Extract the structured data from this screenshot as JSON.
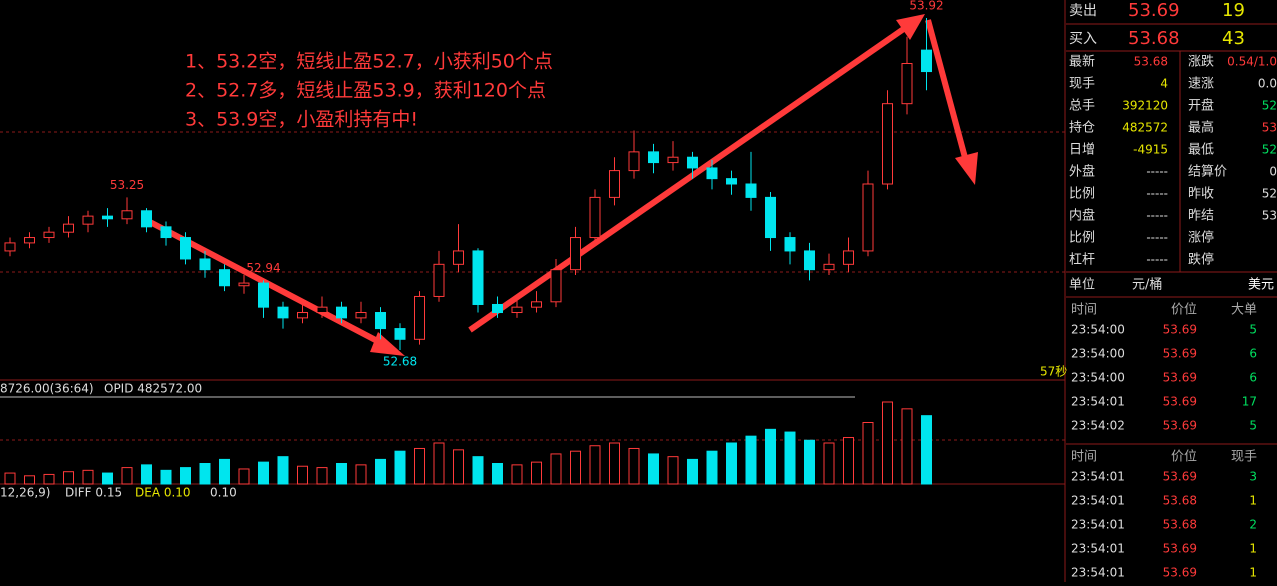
{
  "chart": {
    "annotations": [
      "1、53.2空，短线止盈52.7，小获利50个点",
      "2、52.7多，短线止盈53.9，获利120个点",
      "3、53.9空，小盈利持有中!"
    ],
    "candles": [
      [
        53.05,
        53.1,
        53.03,
        53.08
      ],
      [
        53.08,
        53.12,
        53.06,
        53.1
      ],
      [
        53.1,
        53.14,
        53.08,
        53.12
      ],
      [
        53.12,
        53.18,
        53.1,
        53.15
      ],
      [
        53.15,
        53.2,
        53.12,
        53.18
      ],
      [
        53.18,
        53.21,
        53.14,
        53.17
      ],
      [
        53.17,
        53.25,
        53.15,
        53.2
      ],
      [
        53.2,
        53.21,
        53.12,
        53.14
      ],
      [
        53.14,
        53.16,
        53.07,
        53.1
      ],
      [
        53.1,
        53.12,
        53.0,
        53.02
      ],
      [
        53.02,
        53.05,
        52.95,
        52.98
      ],
      [
        52.98,
        53.0,
        52.9,
        52.92
      ],
      [
        52.92,
        52.96,
        52.89,
        52.93
      ],
      [
        52.93,
        52.94,
        52.8,
        52.84
      ],
      [
        52.84,
        52.86,
        52.76,
        52.8
      ],
      [
        52.8,
        52.85,
        52.78,
        52.82
      ],
      [
        52.82,
        52.88,
        52.8,
        52.84
      ],
      [
        52.84,
        52.86,
        52.78,
        52.8
      ],
      [
        52.8,
        52.86,
        52.78,
        52.82
      ],
      [
        52.82,
        52.84,
        52.72,
        52.76
      ],
      [
        52.76,
        52.78,
        52.68,
        52.72
      ],
      [
        52.72,
        52.9,
        52.7,
        52.88
      ],
      [
        52.88,
        53.05,
        52.86,
        53.0
      ],
      [
        53.0,
        53.15,
        52.97,
        53.05
      ],
      [
        53.05,
        53.06,
        52.82,
        52.85
      ],
      [
        52.85,
        52.88,
        52.8,
        52.82
      ],
      [
        52.82,
        52.87,
        52.8,
        52.84
      ],
      [
        52.84,
        52.9,
        52.82,
        52.86
      ],
      [
        52.86,
        53.02,
        52.84,
        52.98
      ],
      [
        52.98,
        53.14,
        52.96,
        53.1
      ],
      [
        53.1,
        53.28,
        53.08,
        53.25
      ],
      [
        53.25,
        53.4,
        53.22,
        53.35
      ],
      [
        53.35,
        53.5,
        53.32,
        53.42
      ],
      [
        53.42,
        53.45,
        53.34,
        53.38
      ],
      [
        53.38,
        53.46,
        53.35,
        53.4
      ],
      [
        53.4,
        53.42,
        53.32,
        53.36
      ],
      [
        53.36,
        53.39,
        53.28,
        53.32
      ],
      [
        53.32,
        53.35,
        53.26,
        53.3
      ],
      [
        53.3,
        53.42,
        53.2,
        53.25
      ],
      [
        53.25,
        53.27,
        53.05,
        53.1
      ],
      [
        53.1,
        53.12,
        53.0,
        53.05
      ],
      [
        53.05,
        53.08,
        52.94,
        52.98
      ],
      [
        52.98,
        53.04,
        52.96,
        53.0
      ],
      [
        53.0,
        53.1,
        52.97,
        53.05
      ],
      [
        53.05,
        53.35,
        53.03,
        53.3
      ],
      [
        53.3,
        53.65,
        53.28,
        53.6
      ],
      [
        53.6,
        53.85,
        53.56,
        53.75
      ],
      [
        53.8,
        53.92,
        53.65,
        53.72
      ]
    ],
    "volumes": [
      8,
      6,
      7,
      9,
      10,
      8,
      12,
      14,
      10,
      12,
      15,
      18,
      11,
      16,
      20,
      13,
      12,
      15,
      14,
      18,
      24,
      26,
      30,
      25,
      20,
      15,
      14,
      16,
      22,
      24,
      28,
      30,
      26,
      22,
      20,
      18,
      24,
      30,
      35,
      40,
      38,
      32,
      30,
      34,
      45,
      60,
      55,
      50
    ],
    "price_labels": [
      53.25,
      52.68,
      53.92,
      52.94
    ],
    "timer": "57秒",
    "volume_header": [
      "8726.00(36:64)",
      "OPID 482572.00"
    ],
    "macd_header": [
      "12,26,9)",
      "DIFF 0.15",
      "DEA 0.10",
      "0.10"
    ]
  },
  "quote": [
    [
      "卖出",
      "53.69",
      "19"
    ],
    [
      "买入",
      "53.68",
      "43"
    ]
  ],
  "stats": [
    [
      "最新",
      "53.68",
      "涨跌",
      "0.54/1.0"
    ],
    [
      "现手",
      "4",
      "速涨",
      "0.0"
    ],
    [
      "总手",
      "392120",
      "开盘",
      "52"
    ],
    [
      "持仓",
      "482572",
      "最高",
      "53"
    ],
    [
      "日增",
      "-4915",
      "最低",
      "52"
    ],
    [
      "外盘",
      "-----",
      "结算价",
      "0"
    ],
    [
      "比例",
      "-----",
      "昨收",
      "52"
    ],
    [
      "内盘",
      "-----",
      "昨结",
      "53"
    ],
    [
      "比例",
      "-----",
      "涨停",
      ""
    ],
    [
      "杠杆",
      "-----",
      "跌停",
      ""
    ]
  ],
  "unit": [
    "单位",
    "元/桶",
    "美元"
  ],
  "big_orders": {
    "header": [
      "时间",
      "价位",
      "大单"
    ],
    "rows": [
      [
        "23:54:00",
        "53.69",
        "5"
      ],
      [
        "23:54:00",
        "53.69",
        "6"
      ],
      [
        "23:54:00",
        "53.69",
        "6"
      ],
      [
        "23:54:01",
        "53.69",
        "17"
      ],
      [
        "23:54:02",
        "53.69",
        "5"
      ]
    ]
  },
  "trades": {
    "header": [
      "时间",
      "价位",
      "现手"
    ],
    "rows": [
      [
        "23:54:01",
        "53.69",
        "3"
      ],
      [
        "23:54:01",
        "53.68",
        "1"
      ],
      [
        "23:54:01",
        "53.68",
        "2"
      ],
      [
        "23:54:01",
        "53.69",
        "1"
      ],
      [
        "23:54:01",
        "53.69",
        "1"
      ]
    ]
  }
}
